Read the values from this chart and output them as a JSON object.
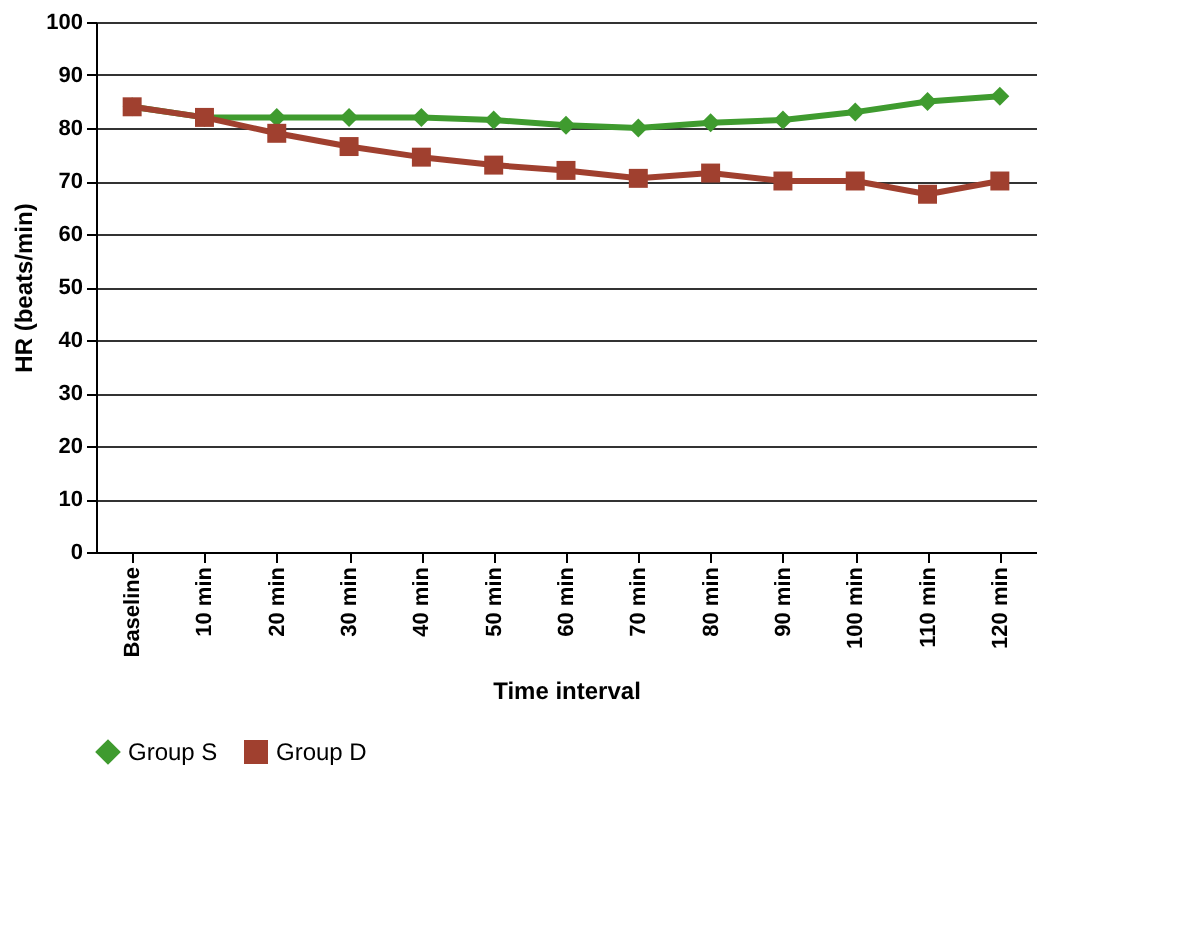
{
  "chart_data": {
    "type": "line",
    "xlabel": "Time interval",
    "ylabel": "HR (beats/min)",
    "categories": [
      "Baseline",
      "10 min",
      "20 min",
      "30 min",
      "40 min",
      "50 min",
      "60 min",
      "70 min",
      "80 min",
      "90 min",
      "100 min",
      "110 min",
      "120 min"
    ],
    "series": [
      {
        "name": "Group S",
        "color": "#3f9b2f",
        "marker": "diamond",
        "values": [
          84,
          82,
          82,
          82,
          82,
          81.5,
          80.5,
          80,
          81,
          81.5,
          83,
          85,
          86
        ]
      },
      {
        "name": "Group D",
        "color": "#a0402f",
        "marker": "square",
        "values": [
          84,
          82,
          79,
          76.5,
          74.5,
          73,
          72,
          70.5,
          71.5,
          70,
          70,
          67.5,
          70
        ]
      }
    ],
    "ylim": [
      0,
      100
    ],
    "yticks": [
      0,
      10,
      20,
      30,
      40,
      50,
      60,
      70,
      80,
      90,
      100
    ],
    "grid": "y",
    "legend": "bottom",
    "line_style": "solid"
  }
}
